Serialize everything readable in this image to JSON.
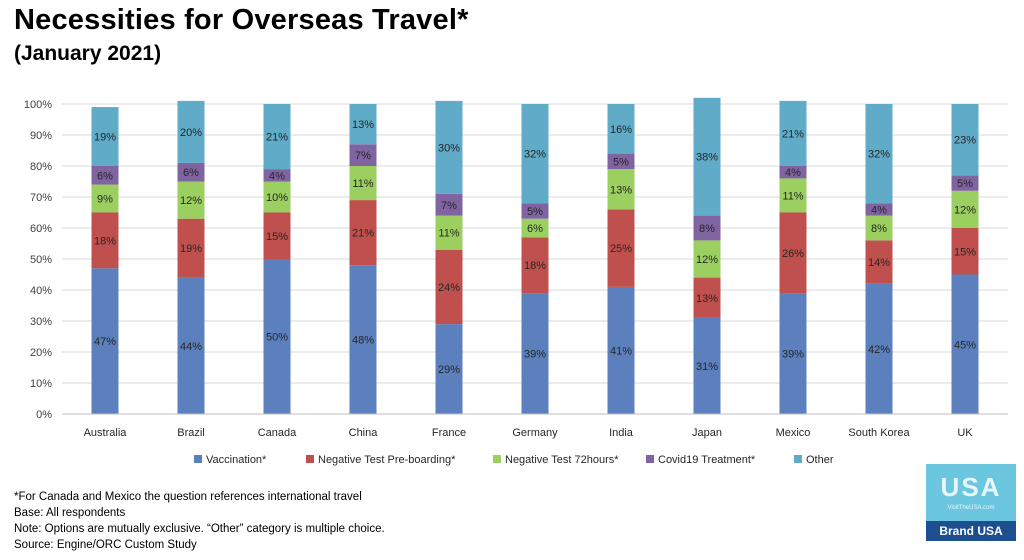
{
  "header": {
    "title": "Necessities for Overseas Travel*",
    "subtitle": "(January 2021)"
  },
  "footnotes": [
    "*For Canada and Mexico the question references international travel",
    "Base: All respondents",
    "Note: Options are mutually exclusive. “Other” category is multiple choice.",
    "Source: Engine/ORC Custom Study"
  ],
  "logo": {
    "text": "USA",
    "url": "VisitTheUSA.com",
    "label": "Brand USA"
  },
  "chart_data": {
    "type": "bar",
    "stacked": true,
    "title": "",
    "xlabel": "",
    "ylabel": "",
    "ylim": [
      0,
      100
    ],
    "yticks": [
      "0%",
      "10%",
      "20%",
      "30%",
      "40%",
      "50%",
      "60%",
      "70%",
      "80%",
      "90%",
      "100%"
    ],
    "grid": true,
    "legend_position": "bottom",
    "categories": [
      "Australia",
      "Brazil",
      "Canada",
      "China",
      "France",
      "Germany",
      "India",
      "Japan",
      "Mexico",
      "South Korea",
      "UK"
    ],
    "series": [
      {
        "name": "Vaccination*",
        "color": "#5b80bd",
        "values": [
          47,
          44,
          50,
          48,
          29,
          39,
          41,
          31,
          39,
          42,
          45
        ]
      },
      {
        "name": "Negative Test Pre-boarding*",
        "color": "#c0504d",
        "values": [
          18,
          19,
          15,
          21,
          24,
          18,
          25,
          13,
          26,
          14,
          15
        ]
      },
      {
        "name": "Negative Test 72hours*",
        "color": "#9bcf5f",
        "values": [
          9,
          12,
          10,
          11,
          11,
          6,
          13,
          12,
          11,
          8,
          12
        ]
      },
      {
        "name": "Covid19 Treatment*",
        "color": "#8064a2",
        "values": [
          6,
          6,
          4,
          7,
          7,
          5,
          5,
          8,
          4,
          4,
          5
        ]
      },
      {
        "name": "Other",
        "color": "#5fabc8",
        "values": [
          19,
          20,
          21,
          13,
          30,
          32,
          16,
          38,
          21,
          32,
          23
        ]
      }
    ]
  }
}
